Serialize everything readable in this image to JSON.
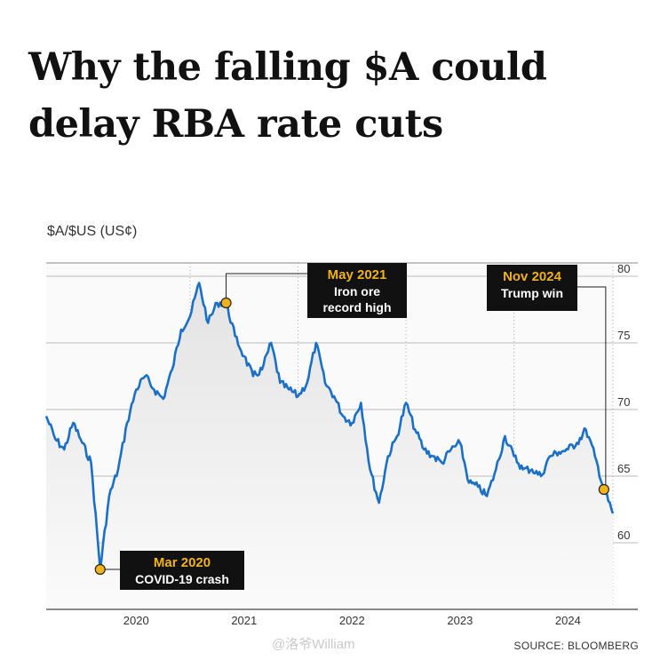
{
  "headline": "Why the falling $A could delay RBA rate cuts",
  "source": "SOURCE: BLOOMBERG",
  "watermark": "@洛爷William",
  "colors": {
    "line": "#1a6fc6",
    "marker": "#f2b21c",
    "annotation_bg": "#111111",
    "annotation_title": "#f2b21c"
  },
  "chart_data": {
    "type": "line",
    "title": "",
    "ylabel": "$A/$US (US¢)",
    "xlabel": "",
    "x_tick_labels": [
      "2020",
      "2021",
      "2022",
      "2023",
      "2024"
    ],
    "y_ticks": [
      60,
      65,
      70,
      75,
      80
    ],
    "ylim": [
      55,
      81
    ],
    "xlim": [
      "2019-09",
      "2024-12"
    ],
    "grid": true,
    "y_axis_side": "right",
    "series": [
      {
        "values": [
          [
            "2019-09",
            69.5
          ],
          [
            "2019-10",
            67.8
          ],
          [
            "2019-11",
            67.0
          ],
          [
            "2019-12",
            69.0
          ],
          [
            "2020-01",
            67.5
          ],
          [
            "2020-02",
            66.0
          ],
          [
            "2020-03",
            58.0
          ],
          [
            "2020-04",
            63.5
          ],
          [
            "2020-05",
            65.5
          ],
          [
            "2020-06",
            69.0
          ],
          [
            "2020-07",
            71.5
          ],
          [
            "2020-08",
            72.5
          ],
          [
            "2020-09",
            71.5
          ],
          [
            "2020-10",
            70.8
          ],
          [
            "2020-11",
            73.0
          ],
          [
            "2020-12",
            76.0
          ],
          [
            "2021-01",
            77.0
          ],
          [
            "2021-02",
            79.5
          ],
          [
            "2021-03",
            76.5
          ],
          [
            "2021-04",
            78.0
          ],
          [
            "2021-05",
            78.0
          ],
          [
            "2021-06",
            75.5
          ],
          [
            "2021-07",
            74.0
          ],
          [
            "2021-08",
            72.5
          ],
          [
            "2021-09",
            73.0
          ],
          [
            "2021-10",
            75.0
          ],
          [
            "2021-11",
            72.0
          ],
          [
            "2021-12",
            71.5
          ],
          [
            "2022-01",
            71.0
          ],
          [
            "2022-02",
            72.0
          ],
          [
            "2022-03",
            75.0
          ],
          [
            "2022-04",
            72.0
          ],
          [
            "2022-05",
            71.0
          ],
          [
            "2022-06",
            69.5
          ],
          [
            "2022-07",
            69.0
          ],
          [
            "2022-08",
            70.5
          ],
          [
            "2022-09",
            65.5
          ],
          [
            "2022-10",
            63.0
          ],
          [
            "2022-11",
            66.5
          ],
          [
            "2022-12",
            68.0
          ],
          [
            "2023-01",
            70.5
          ],
          [
            "2023-02",
            68.5
          ],
          [
            "2023-03",
            67.0
          ],
          [
            "2023-04",
            66.5
          ],
          [
            "2023-05",
            66.0
          ],
          [
            "2023-06",
            67.0
          ],
          [
            "2023-07",
            67.5
          ],
          [
            "2023-08",
            64.5
          ],
          [
            "2023-09",
            64.2
          ],
          [
            "2023-10",
            63.5
          ],
          [
            "2023-11",
            65.5
          ],
          [
            "2023-12",
            68.0
          ],
          [
            "2024-01",
            66.5
          ],
          [
            "2024-02",
            65.5
          ],
          [
            "2024-03",
            65.5
          ],
          [
            "2024-04",
            65.0
          ],
          [
            "2024-05",
            66.5
          ],
          [
            "2024-06",
            66.8
          ],
          [
            "2024-07",
            67.0
          ],
          [
            "2024-08",
            67.5
          ],
          [
            "2024-09",
            68.5
          ],
          [
            "2024-10",
            66.5
          ],
          [
            "2024-11",
            64.0
          ],
          [
            "2024-12",
            62.2
          ]
        ]
      }
    ],
    "annotations": [
      {
        "label": "Mar 2020",
        "text": "COVID-19 crash",
        "x": "2020-03",
        "y": 58.0
      },
      {
        "label": "May 2021",
        "text": "Iron ore record high",
        "x": "2021-05",
        "y": 78.0
      },
      {
        "label": "Nov 2024",
        "text": "Trump win",
        "x": "2024-11",
        "y": 64.0
      }
    ]
  }
}
